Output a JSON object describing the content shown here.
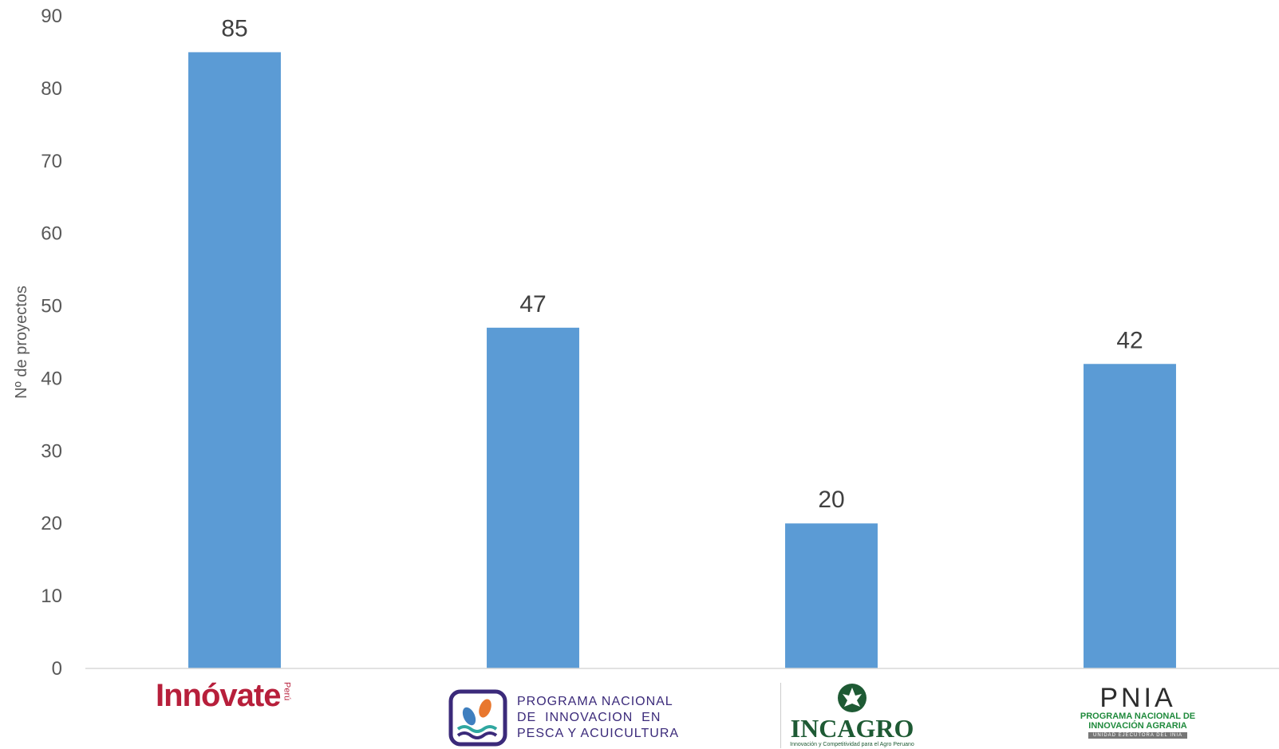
{
  "chart_data": {
    "type": "bar",
    "title": "",
    "xlabel": "",
    "ylabel": "Nº de proyectos",
    "ylim": [
      0,
      90
    ],
    "yticks": [
      0,
      10,
      20,
      30,
      40,
      50,
      60,
      70,
      80,
      90
    ],
    "grid": false,
    "legend": "none",
    "categories": [
      "Innóvate Perú",
      "PROGRAMA NACIONAL DE INNOVACION EN PESCA Y ACUICULTURA",
      "INCAGRO",
      "PNIA PROGRAMA NACIONAL DE INNOVACIÓN AGRARIA"
    ],
    "values": [
      85,
      47,
      20,
      42
    ],
    "bar_color": "#5b9bd5",
    "axis_color": "#d9d9d9"
  },
  "logos": {
    "innovate": {
      "word": "Innóvate",
      "suffix": "Perú"
    },
    "pesca": {
      "text": "PROGRAMA NACIONAL\nDE  INNOVACION  EN\nPESCA Y ACUICULTURA"
    },
    "incagro": {
      "word": "INCAGRO",
      "tagline": "Innovación y Competitividad para el Agro Peruano"
    },
    "pnia": {
      "word": "PNIA",
      "line1": "PROGRAMA NACIONAL DE",
      "line2": "INNOVACIÓN AGRARIA",
      "bar": "UNIDAD EJECUTORA DEL INIA"
    }
  }
}
